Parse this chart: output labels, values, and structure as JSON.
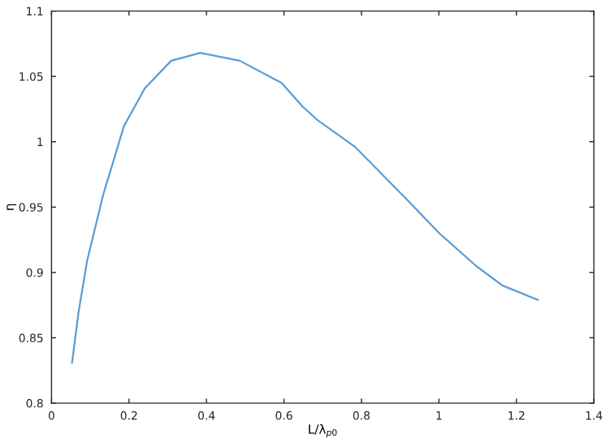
{
  "chart_data": {
    "type": "line",
    "xlabel": "L/λ$_{p0}$",
    "ylabel": "η",
    "x": [
      0.053,
      0.07,
      0.092,
      0.133,
      0.187,
      0.241,
      0.309,
      0.384,
      0.486,
      0.594,
      0.648,
      0.689,
      0.784,
      0.92,
      1.001,
      1.096,
      1.164,
      1.255
    ],
    "series": [
      {
        "color": "#5b9bd5",
        "values": [
          0.831,
          0.87,
          0.909,
          0.959,
          1.012,
          1.041,
          1.062,
          1.068,
          1.062,
          1.045,
          1.027,
          1.016,
          0.996,
          0.955,
          0.93,
          0.905,
          0.89,
          0.879
        ]
      }
    ],
    "xlim": [
      0,
      1.4
    ],
    "ylim": [
      0.8,
      1.1
    ],
    "xticks": [
      0,
      0.2,
      0.4,
      0.6,
      0.8,
      1,
      1.2,
      1.4
    ],
    "yticks": [
      0.8,
      0.85,
      0.9,
      0.95,
      1,
      1.05,
      1.1
    ],
    "grid": false,
    "legend": false
  }
}
